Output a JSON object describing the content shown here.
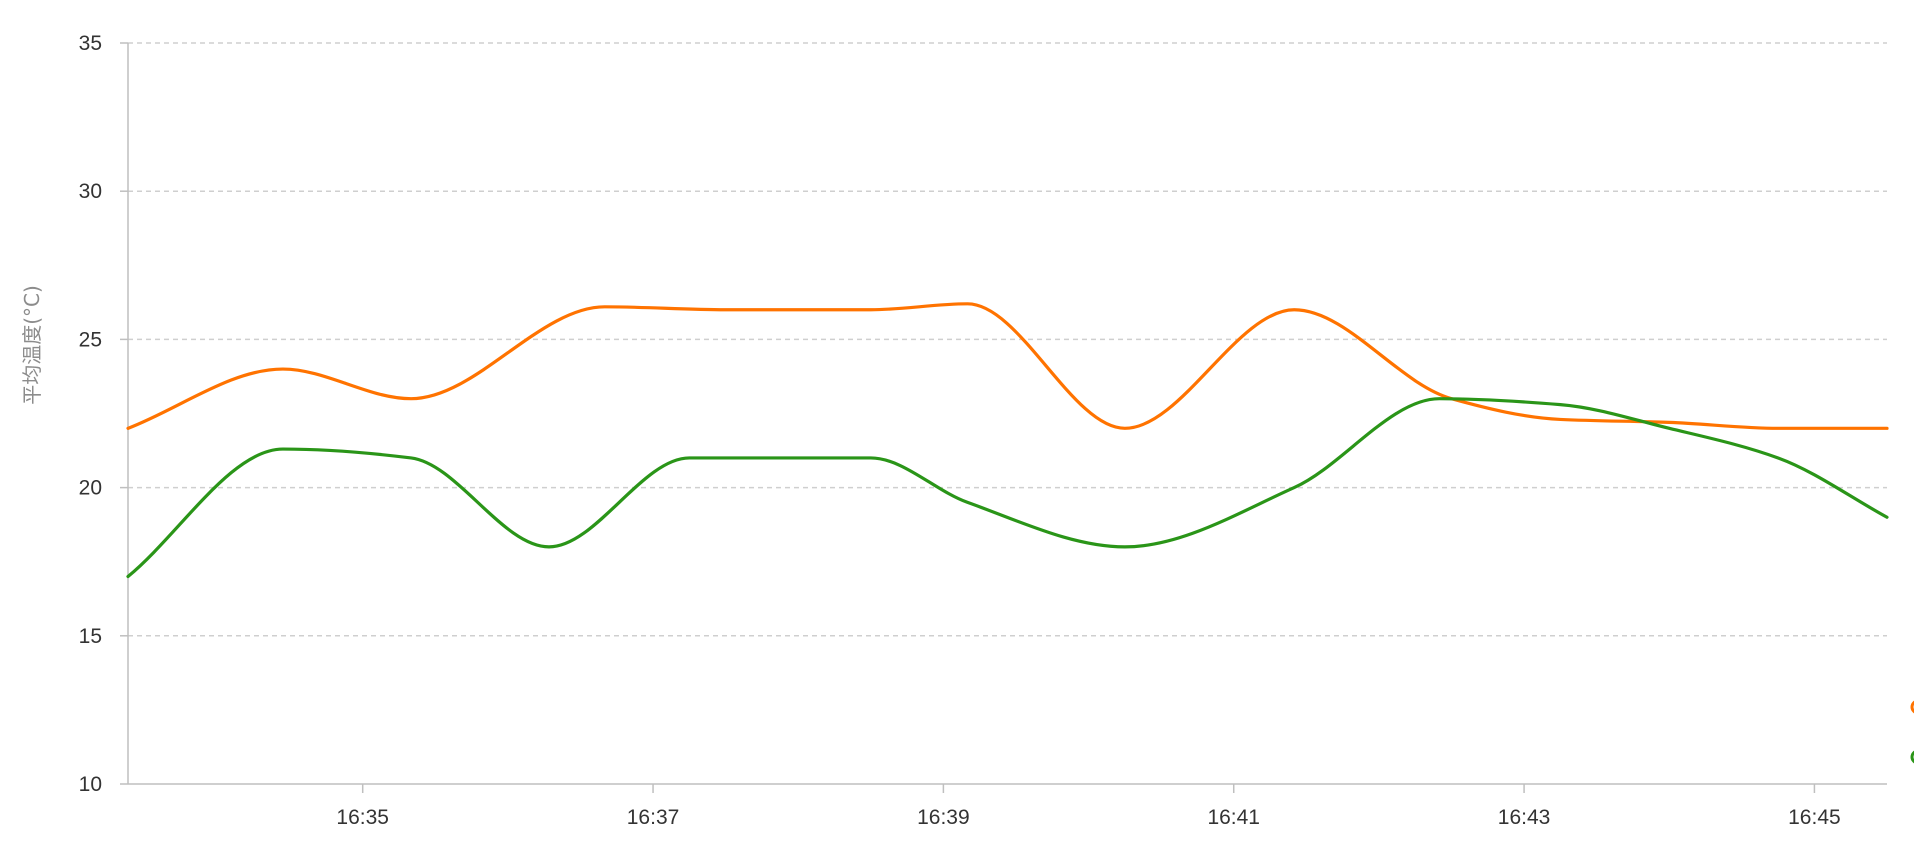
{
  "chart_data": {
    "type": "line",
    "title": "",
    "xlabel": "",
    "ylabel": "平均温度(°C)",
    "ylim": [
      10,
      35
    ],
    "yticks": [
      10,
      15,
      20,
      25,
      30,
      35
    ],
    "xlim": [
      "16:33:23",
      "16:45:30"
    ],
    "xticks": [
      "16:35",
      "16:37",
      "16:39",
      "16:41",
      "16:43",
      "16:45"
    ],
    "grid": true,
    "legend": "right (cut off)",
    "series": [
      {
        "color": "#ff7300",
        "points": [
          [
            "16:33:23",
            22.0
          ],
          [
            "16:34:27",
            24.0
          ],
          [
            "16:35:20",
            23.0
          ],
          [
            "16:36:40",
            26.1
          ],
          [
            "16:37:30",
            26.0
          ],
          [
            "16:38:30",
            26.0
          ],
          [
            "16:39:10",
            26.2
          ],
          [
            "16:40:15",
            22.0
          ],
          [
            "16:41:25",
            26.0
          ],
          [
            "16:42:30",
            23.0
          ],
          [
            "16:43:15",
            22.3
          ],
          [
            "16:44:00",
            22.2
          ],
          [
            "16:44:45",
            22.0
          ],
          [
            "16:45:30",
            22.0
          ]
        ]
      },
      {
        "color": "#2a9518",
        "points": [
          [
            "16:33:23",
            17.0
          ],
          [
            "16:34:27",
            21.3
          ],
          [
            "16:35:20",
            21.0
          ],
          [
            "16:36:17",
            18.0
          ],
          [
            "16:37:15",
            21.0
          ],
          [
            "16:38:30",
            21.0
          ],
          [
            "16:39:10",
            19.5
          ],
          [
            "16:40:15",
            18.0
          ],
          [
            "16:41:25",
            20.0
          ],
          [
            "16:42:25",
            23.0
          ],
          [
            "16:43:15",
            22.8
          ],
          [
            "16:44:00",
            22.0
          ],
          [
            "16:44:45",
            21.0
          ],
          [
            "16:45:30",
            19.0
          ]
        ]
      }
    ]
  },
  "legend_items": [
    {
      "color": "#ff7300"
    },
    {
      "color": "#2a9518"
    }
  ]
}
